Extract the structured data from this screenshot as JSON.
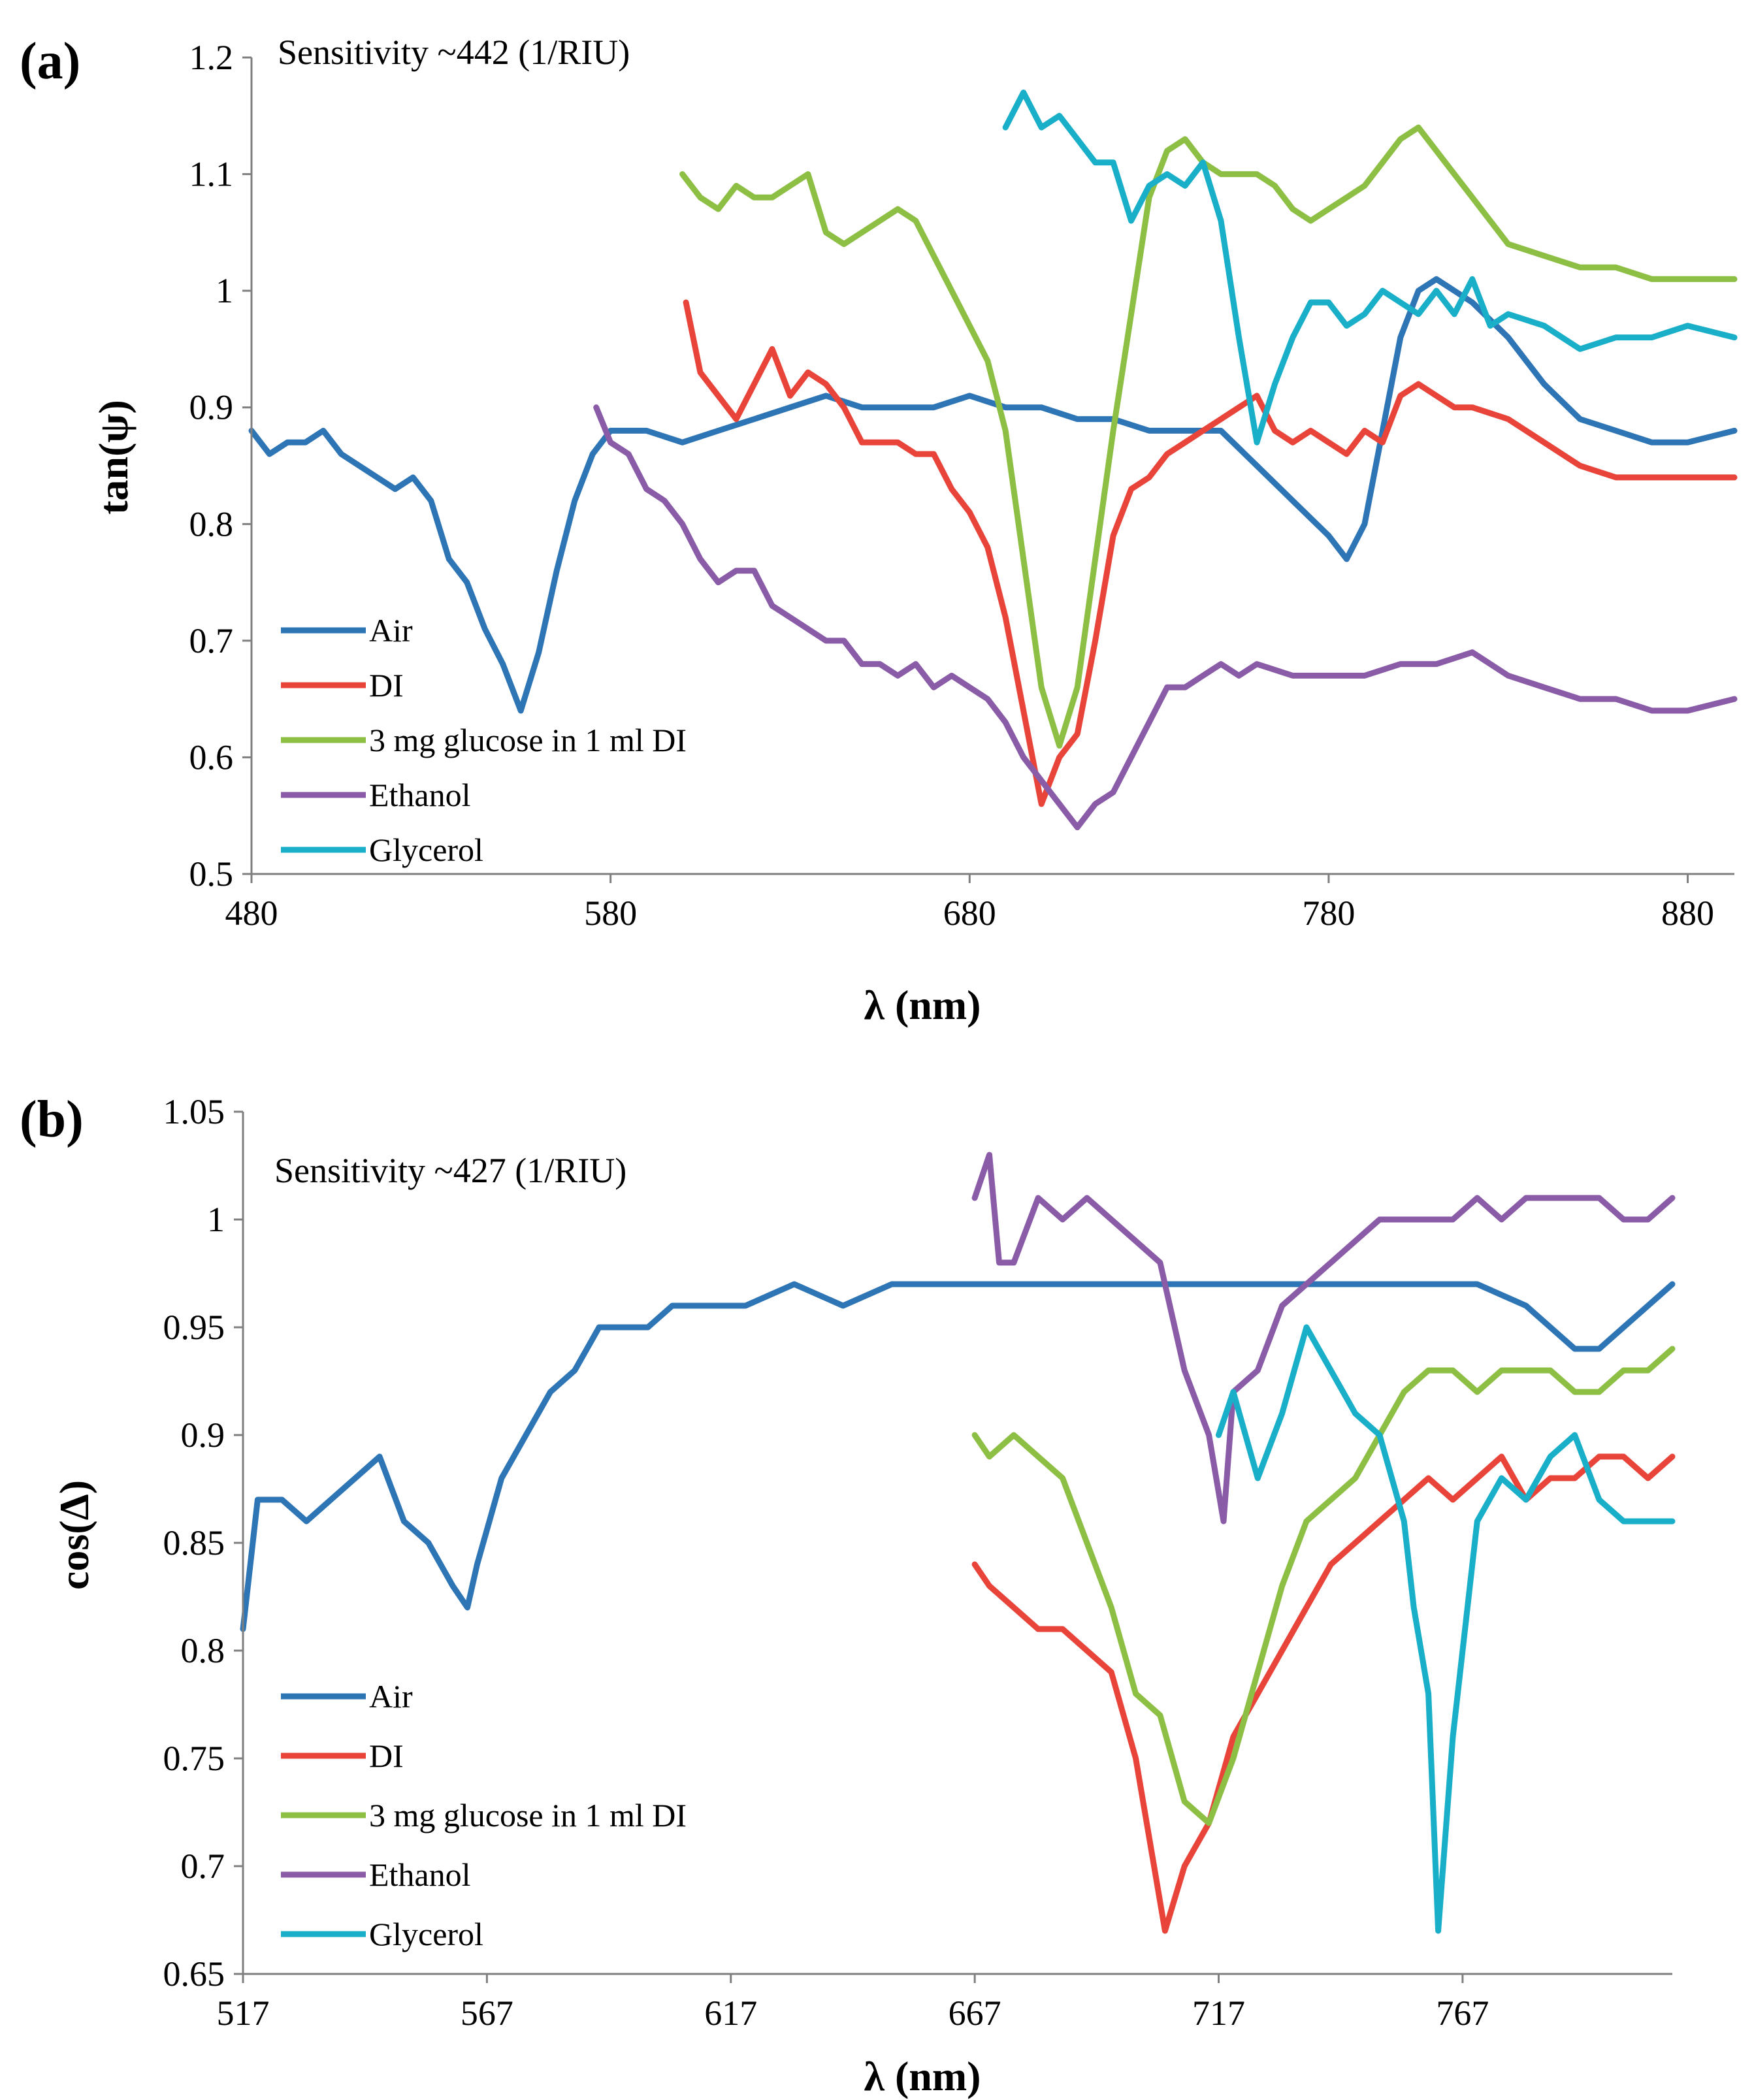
{
  "chart_data": [
    {
      "type": "line",
      "panel_label": "(a)",
      "annotation": "Sensitivity ~442 (1/RIU)",
      "xlabel": "λ (nm)",
      "ylabel": "tan(ψ)",
      "xlim": [
        480,
        893
      ],
      "ylim": [
        0.5,
        1.2
      ],
      "xticks": [
        "480",
        "580",
        "680",
        "780",
        "880"
      ],
      "yticks": [
        "0.5",
        "0.6",
        "0.7",
        "0.8",
        "0.9",
        "1",
        "1.1",
        "1.2"
      ],
      "legend_position": "bottom-left",
      "series": [
        {
          "name": "Air",
          "color": "#2E75B6",
          "x": [
            480,
            485,
            490,
            495,
            500,
            505,
            510,
            515,
            520,
            525,
            530,
            535,
            540,
            545,
            550,
            555,
            560,
            565,
            570,
            575,
            580,
            585,
            590,
            600,
            610,
            620,
            630,
            640,
            650,
            660,
            670,
            680,
            690,
            700,
            710,
            720,
            730,
            740,
            750,
            760,
            770,
            780,
            785,
            790,
            795,
            800,
            805,
            810,
            815,
            820,
            830,
            840,
            850,
            860,
            870,
            880,
            893
          ],
          "y": [
            0.88,
            0.86,
            0.87,
            0.87,
            0.88,
            0.86,
            0.85,
            0.84,
            0.83,
            0.84,
            0.82,
            0.77,
            0.75,
            0.71,
            0.68,
            0.64,
            0.69,
            0.76,
            0.82,
            0.86,
            0.88,
            0.88,
            0.88,
            0.87,
            0.88,
            0.89,
            0.9,
            0.91,
            0.9,
            0.9,
            0.9,
            0.91,
            0.9,
            0.9,
            0.89,
            0.89,
            0.88,
            0.88,
            0.88,
            0.85,
            0.82,
            0.79,
            0.77,
            0.8,
            0.88,
            0.96,
            1.0,
            1.01,
            1.0,
            0.99,
            0.96,
            0.92,
            0.89,
            0.88,
            0.87,
            0.87,
            0.88
          ]
        },
        {
          "name": "DI",
          "color": "#E8443A",
          "x": [
            601,
            605,
            610,
            615,
            620,
            625,
            630,
            635,
            640,
            645,
            650,
            655,
            660,
            665,
            670,
            675,
            680,
            685,
            690,
            695,
            700,
            705,
            710,
            715,
            720,
            725,
            730,
            735,
            740,
            745,
            750,
            755,
            760,
            765,
            770,
            775,
            780,
            785,
            790,
            795,
            800,
            805,
            810,
            815,
            820,
            830,
            840,
            850,
            860,
            870,
            880,
            893
          ],
          "y": [
            0.99,
            0.93,
            0.91,
            0.89,
            0.92,
            0.95,
            0.91,
            0.93,
            0.92,
            0.9,
            0.87,
            0.87,
            0.87,
            0.86,
            0.86,
            0.83,
            0.81,
            0.78,
            0.72,
            0.64,
            0.56,
            0.6,
            0.62,
            0.7,
            0.79,
            0.83,
            0.84,
            0.86,
            0.87,
            0.88,
            0.89,
            0.9,
            0.91,
            0.88,
            0.87,
            0.88,
            0.87,
            0.86,
            0.88,
            0.87,
            0.91,
            0.92,
            0.91,
            0.9,
            0.9,
            0.89,
            0.87,
            0.85,
            0.84,
            0.84,
            0.84,
            0.84
          ]
        },
        {
          "name": "3 mg glucose in 1 ml DI",
          "color": "#8DBF44",
          "x": [
            600,
            605,
            610,
            615,
            620,
            625,
            630,
            635,
            640,
            645,
            650,
            655,
            660,
            665,
            670,
            675,
            680,
            685,
            690,
            695,
            700,
            705,
            710,
            715,
            720,
            725,
            730,
            735,
            740,
            745,
            750,
            755,
            760,
            765,
            770,
            775,
            780,
            785,
            790,
            795,
            800,
            805,
            810,
            815,
            820,
            830,
            840,
            850,
            860,
            870,
            880,
            893
          ],
          "y": [
            1.1,
            1.08,
            1.07,
            1.09,
            1.08,
            1.08,
            1.09,
            1.1,
            1.05,
            1.04,
            1.05,
            1.06,
            1.07,
            1.06,
            1.03,
            1.0,
            0.97,
            0.94,
            0.88,
            0.77,
            0.66,
            0.61,
            0.66,
            0.77,
            0.88,
            0.98,
            1.08,
            1.12,
            1.13,
            1.11,
            1.1,
            1.1,
            1.1,
            1.09,
            1.07,
            1.06,
            1.07,
            1.08,
            1.09,
            1.11,
            1.13,
            1.14,
            1.12,
            1.1,
            1.08,
            1.04,
            1.03,
            1.02,
            1.02,
            1.01,
            1.01,
            1.01
          ]
        },
        {
          "name": "Ethanol",
          "color": "#8A5CA8",
          "x": [
            576,
            580,
            585,
            590,
            595,
            600,
            605,
            610,
            615,
            620,
            625,
            630,
            635,
            640,
            645,
            650,
            655,
            660,
            665,
            670,
            675,
            680,
            685,
            690,
            695,
            700,
            705,
            710,
            715,
            720,
            725,
            730,
            735,
            740,
            745,
            750,
            755,
            760,
            770,
            780,
            790,
            800,
            810,
            820,
            830,
            840,
            850,
            860,
            870,
            880,
            893
          ],
          "y": [
            0.9,
            0.87,
            0.86,
            0.83,
            0.82,
            0.8,
            0.77,
            0.75,
            0.76,
            0.76,
            0.73,
            0.72,
            0.71,
            0.7,
            0.7,
            0.68,
            0.68,
            0.67,
            0.68,
            0.66,
            0.67,
            0.66,
            0.65,
            0.63,
            0.6,
            0.58,
            0.56,
            0.54,
            0.56,
            0.57,
            0.6,
            0.63,
            0.66,
            0.66,
            0.67,
            0.68,
            0.67,
            0.68,
            0.67,
            0.67,
            0.67,
            0.68,
            0.68,
            0.69,
            0.67,
            0.66,
            0.65,
            0.65,
            0.64,
            0.64,
            0.65
          ]
        },
        {
          "name": "Glycerol",
          "color": "#1AAFC8",
          "x": [
            690,
            695,
            700,
            705,
            710,
            715,
            720,
            725,
            730,
            735,
            740,
            745,
            750,
            755,
            760,
            765,
            770,
            775,
            780,
            785,
            790,
            795,
            800,
            805,
            810,
            815,
            820,
            825,
            830,
            840,
            850,
            860,
            870,
            880,
            893
          ],
          "y": [
            1.14,
            1.17,
            1.14,
            1.15,
            1.13,
            1.11,
            1.11,
            1.06,
            1.09,
            1.1,
            1.09,
            1.11,
            1.06,
            0.96,
            0.87,
            0.92,
            0.96,
            0.99,
            0.99,
            0.97,
            0.98,
            1.0,
            0.99,
            0.98,
            1.0,
            0.98,
            1.01,
            0.97,
            0.98,
            0.97,
            0.95,
            0.96,
            0.96,
            0.97,
            0.96
          ]
        }
      ]
    },
    {
      "type": "line",
      "panel_label": "(b)",
      "annotation": "Sensitivity ~427 (1/RIU)",
      "xlabel": "λ (nm)",
      "ylabel": "cos(Δ)",
      "xlim": [
        517,
        810
      ],
      "ylim": [
        0.65,
        1.05
      ],
      "xticks": [
        "517",
        "567",
        "617",
        "667",
        "717",
        "767"
      ],
      "yticks": [
        "0.65",
        "0.7",
        "0.75",
        "0.8",
        "0.85",
        "0.9",
        "0.95",
        "1",
        "1.05"
      ],
      "legend_position": "bottom-left",
      "series": [
        {
          "name": "Air",
          "color": "#2E75B6",
          "x": [
            517,
            520,
            525,
            530,
            535,
            540,
            545,
            550,
            555,
            560,
            563,
            565,
            570,
            575,
            580,
            585,
            590,
            595,
            600,
            605,
            610,
            620,
            630,
            640,
            650,
            660,
            670,
            680,
            690,
            700,
            710,
            720,
            730,
            740,
            750,
            760,
            770,
            780,
            785,
            790,
            795,
            800,
            805,
            810
          ],
          "y": [
            0.81,
            0.87,
            0.87,
            0.86,
            0.87,
            0.88,
            0.89,
            0.86,
            0.85,
            0.83,
            0.82,
            0.84,
            0.88,
            0.9,
            0.92,
            0.93,
            0.95,
            0.95,
            0.95,
            0.96,
            0.96,
            0.96,
            0.97,
            0.96,
            0.97,
            0.97,
            0.97,
            0.97,
            0.97,
            0.97,
            0.97,
            0.97,
            0.97,
            0.97,
            0.97,
            0.97,
            0.97,
            0.96,
            0.95,
            0.94,
            0.94,
            0.95,
            0.96,
            0.97
          ]
        },
        {
          "name": "DI",
          "color": "#E8443A",
          "x": [
            667,
            670,
            675,
            680,
            685,
            690,
            695,
            700,
            703,
            706,
            710,
            715,
            720,
            725,
            730,
            735,
            740,
            745,
            750,
            755,
            760,
            765,
            770,
            775,
            780,
            785,
            790,
            795,
            800,
            805,
            810
          ],
          "y": [
            0.84,
            0.83,
            0.82,
            0.81,
            0.81,
            0.8,
            0.79,
            0.75,
            0.71,
            0.67,
            0.7,
            0.72,
            0.76,
            0.78,
            0.8,
            0.82,
            0.84,
            0.85,
            0.86,
            0.87,
            0.88,
            0.87,
            0.88,
            0.89,
            0.87,
            0.88,
            0.88,
            0.89,
            0.89,
            0.88,
            0.89
          ]
        },
        {
          "name": "3 mg glucose in 1 ml DI",
          "color": "#8DBF44",
          "x": [
            667,
            670,
            675,
            680,
            685,
            690,
            695,
            700,
            705,
            710,
            715,
            720,
            725,
            730,
            735,
            740,
            745,
            750,
            755,
            760,
            765,
            770,
            775,
            780,
            785,
            790,
            795,
            800,
            805,
            810
          ],
          "y": [
            0.9,
            0.89,
            0.9,
            0.89,
            0.88,
            0.85,
            0.82,
            0.78,
            0.77,
            0.73,
            0.72,
            0.75,
            0.79,
            0.83,
            0.86,
            0.87,
            0.88,
            0.9,
            0.92,
            0.93,
            0.93,
            0.92,
            0.93,
            0.93,
            0.93,
            0.92,
            0.92,
            0.93,
            0.93,
            0.94
          ]
        },
        {
          "name": "Ethanol",
          "color": "#8A5CA8",
          "x": [
            667,
            670,
            672,
            675,
            680,
            685,
            690,
            695,
            700,
            705,
            710,
            715,
            718,
            720,
            725,
            730,
            735,
            740,
            745,
            750,
            755,
            760,
            765,
            770,
            775,
            780,
            785,
            790,
            795,
            800,
            805,
            810
          ],
          "y": [
            1.01,
            1.03,
            0.98,
            0.98,
            1.01,
            1.0,
            1.01,
            1.0,
            0.99,
            0.98,
            0.93,
            0.9,
            0.86,
            0.92,
            0.93,
            0.96,
            0.97,
            0.98,
            0.99,
            1.0,
            1.0,
            1.0,
            1.0,
            1.01,
            1.0,
            1.01,
            1.01,
            1.01,
            1.01,
            1.0,
            1.0,
            1.01
          ]
        },
        {
          "name": "Glycerol",
          "color": "#1AAFC8",
          "x": [
            717,
            720,
            725,
            730,
            735,
            740,
            745,
            750,
            755,
            757,
            760,
            762,
            765,
            770,
            775,
            780,
            785,
            790,
            795,
            800,
            805,
            810
          ],
          "y": [
            0.9,
            0.92,
            0.88,
            0.91,
            0.95,
            0.93,
            0.91,
            0.9,
            0.86,
            0.82,
            0.78,
            0.67,
            0.76,
            0.86,
            0.88,
            0.87,
            0.89,
            0.9,
            0.87,
            0.86,
            0.86,
            0.86
          ]
        }
      ]
    }
  ]
}
